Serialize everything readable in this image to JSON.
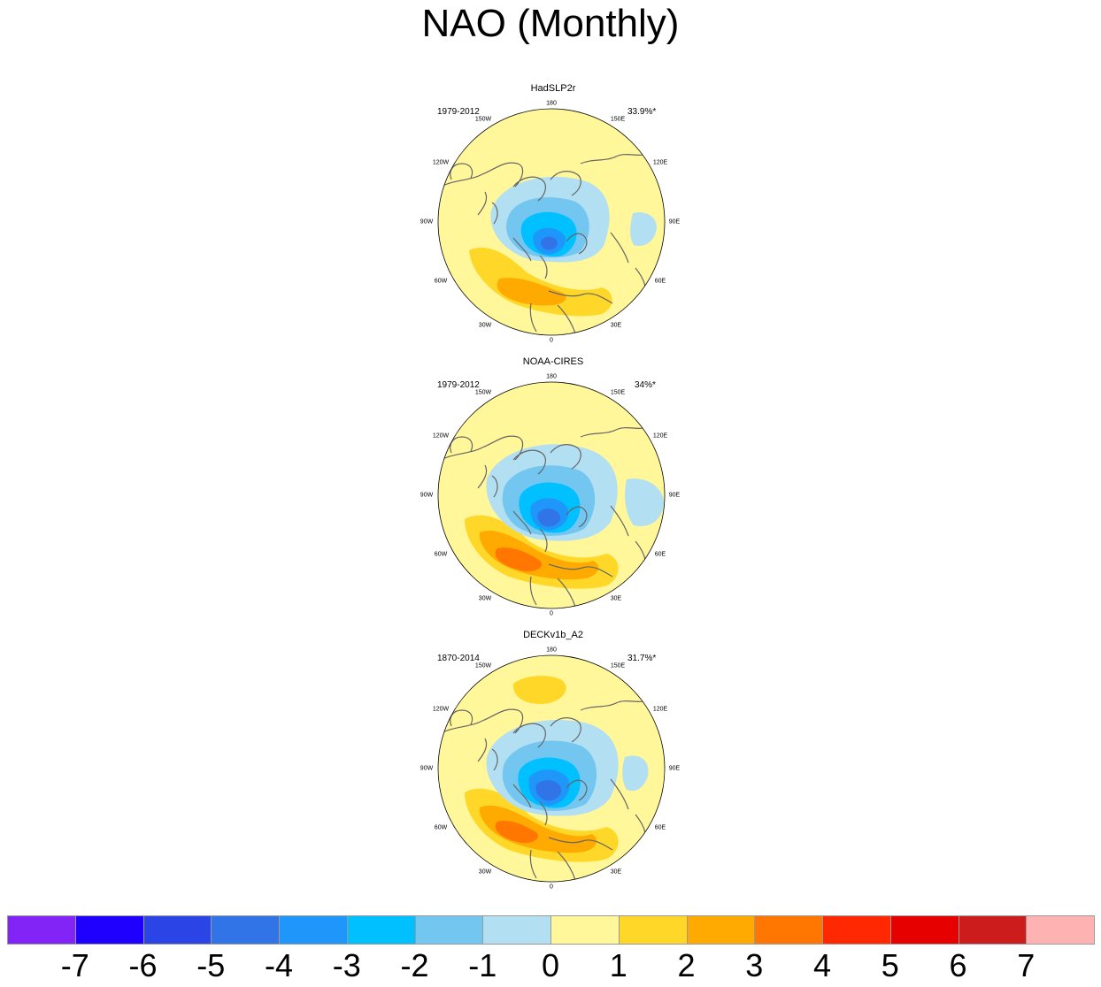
{
  "title": "NAO (Monthly)",
  "panels": [
    {
      "name": "HadSLP2r",
      "period": "1979-2012",
      "variance": "33.9%*",
      "variant": "had"
    },
    {
      "name": "NOAA-CIRES",
      "period": "1979-2012",
      "variance": "34%*",
      "variant": "noaa"
    },
    {
      "name": "DECKv1b_A2",
      "period": "1870-2014",
      "variance": "31.7%*",
      "variant": "deck"
    }
  ],
  "longitude_labels": [
    "180",
    "150E",
    "120E",
    "90E",
    "60E",
    "30E",
    "0",
    "30W",
    "60W",
    "90W",
    "120W",
    "150W"
  ],
  "colorbar": {
    "levels": [
      "-7",
      "-6",
      "-5",
      "-4",
      "-3",
      "-2",
      "-1",
      "0",
      "1",
      "2",
      "3",
      "4",
      "5",
      "6",
      "7"
    ],
    "colors": [
      "#8224f5",
      "#1f00ff",
      "#2b44e6",
      "#3074e8",
      "#1f96fa",
      "#00c0ff",
      "#73c6f0",
      "#b3dff2",
      "#fff799",
      "#ffd728",
      "#ffaa00",
      "#ff7700",
      "#ff2800",
      "#e60000",
      "#cc1c1c",
      "#ffb2b2"
    ]
  }
}
